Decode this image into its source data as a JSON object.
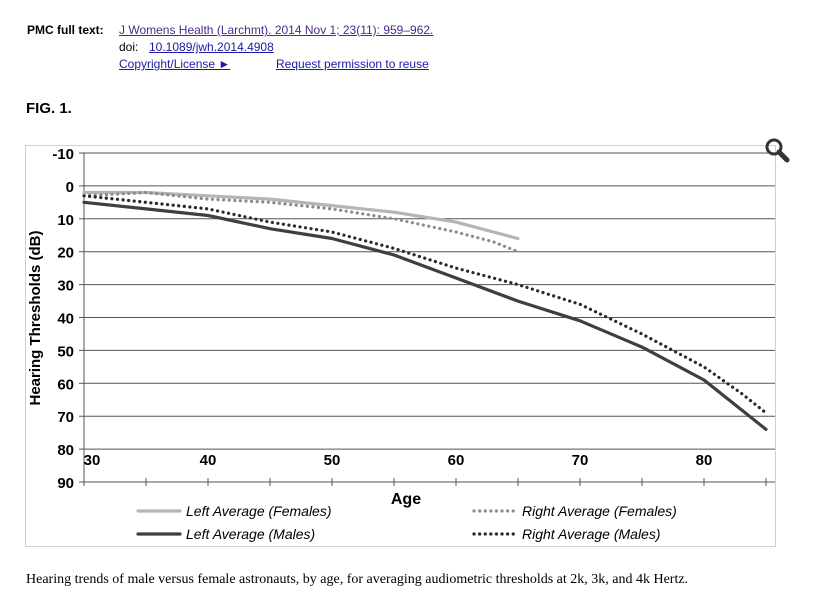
{
  "header": {
    "pmc_label": "PMC full text:",
    "journal_link": "J Womens Health (Larchmt). 2014 Nov 1; 23(11): 959–962.",
    "doi_label": "doi:",
    "doi_link": "10.1089/jwh.2014.4908",
    "copyright_link": "Copyright/License ►",
    "permission_link": "Request permission to reuse"
  },
  "figure": {
    "label": "FIG. 1.",
    "caption": "Hearing trends of male versus female astronauts, by age, for averaging audiometric thresholds at 2k, 3k, and 4k Hertz.",
    "zoom_icon": "magnifier-icon"
  },
  "chart_data": {
    "type": "line",
    "title": "",
    "xlabel": "Age",
    "ylabel": "Hearing Thresholds (dB)",
    "xlim": [
      30,
      85
    ],
    "ylim": [
      -10,
      90
    ],
    "y_inverted": true,
    "xticks": [
      30,
      40,
      50,
      60,
      70,
      80
    ],
    "yticks": [
      -10,
      0,
      10,
      20,
      30,
      40,
      50,
      60,
      70,
      80,
      90
    ],
    "grid": true,
    "legend_position": "bottom",
    "series": [
      {
        "name": "Left Average (Females)",
        "color": "#b5b5b5",
        "style": "solid",
        "x": [
          30,
          35,
          40,
          45,
          50,
          55,
          60,
          65
        ],
        "y": [
          2,
          2,
          3,
          4,
          6,
          8,
          11,
          16
        ]
      },
      {
        "name": "Left Average (Males)",
        "color": "#3f3f3f",
        "style": "solid",
        "x": [
          30,
          35,
          40,
          45,
          50,
          55,
          60,
          65,
          70,
          75,
          80,
          83,
          85
        ],
        "y": [
          5,
          7,
          9,
          13,
          16,
          21,
          28,
          35,
          41,
          49,
          59,
          68,
          74
        ]
      },
      {
        "name": "Right Average (Females)",
        "color": "#8c8c8c",
        "style": "dotted",
        "x": [
          30,
          35,
          40,
          45,
          50,
          55,
          60,
          63,
          65
        ],
        "y": [
          3,
          2,
          4,
          5,
          7,
          10,
          14,
          17,
          20
        ]
      },
      {
        "name": "Right Average (Males)",
        "color": "#2a2a2a",
        "style": "dotted",
        "x": [
          30,
          35,
          40,
          45,
          50,
          55,
          60,
          65,
          70,
          75,
          80,
          83,
          85
        ],
        "y": [
          3,
          5,
          7,
          11,
          14,
          19,
          25,
          30,
          36,
          45,
          55,
          63,
          69
        ]
      }
    ]
  }
}
